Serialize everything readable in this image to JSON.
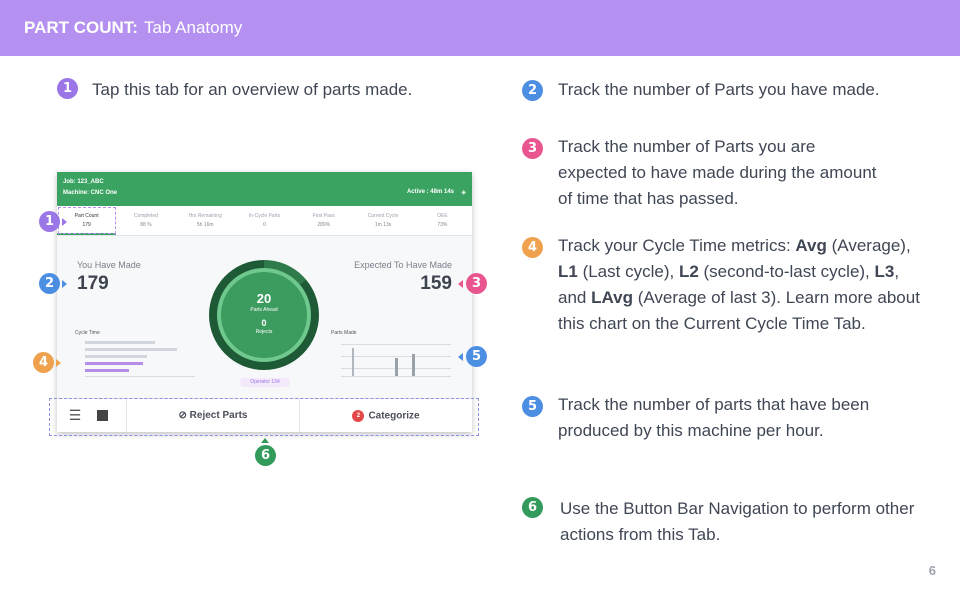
{
  "header": {
    "strong": "PART COUNT:",
    "rest": "Tab Anatomy"
  },
  "notes": [
    {
      "num": "1",
      "text": "Tap this tab for an overview of parts made."
    },
    {
      "num": "2",
      "text": "Track the number of Parts you have made."
    },
    {
      "num": "3",
      "text": "Track the number of Parts you are expected to have made during the amount of time that has passed."
    },
    {
      "num": "4",
      "parts": [
        "Track your Cycle Time metrics: ",
        "Avg",
        " (Average), ",
        "L1",
        " (Last cycle), ",
        "L2",
        " (second-to-last cycle), ",
        "L3",
        ", and ",
        "LAvg",
        " (Average of last 3). Learn more about this chart on the Current Cycle Time Tab."
      ]
    },
    {
      "num": "5",
      "text": "Track the number of parts that have been produced by this machine per hour."
    },
    {
      "num": "6",
      "text": "Use the Button Bar Navigation to perform other actions from this Tab."
    }
  ],
  "screen": {
    "job": "Job: 123_ABC",
    "machine": "Machine: CNC One",
    "active": "Active : 48m 14s",
    "tabs": [
      {
        "label": "Part Count",
        "value": "179"
      },
      {
        "label": "Completed",
        "value": "88 %"
      },
      {
        "label": "Hrs Remaining",
        "value": "5h 16m"
      },
      {
        "label": "In-Cycle Parts",
        "value": "0"
      },
      {
        "label": "First Pass",
        "value": "289%"
      },
      {
        "label": "Current Cycle",
        "value": "1m 13s"
      },
      {
        "label": "OEE",
        "value": "73%"
      }
    ],
    "you_label": "You Have Made",
    "you_value": "179",
    "expected_label": "Expected To Have Made",
    "expected_value": "159",
    "donut_main": "20",
    "donut_main_label": "Parts Ahead",
    "donut_second": "0",
    "donut_second_label": "Rejects",
    "cycle_title": "Cycle Time",
    "parts_title": "Parts Made",
    "operator": "Operator 134",
    "reject": "Reject Parts",
    "categorize": "Categorize",
    "categorize_count": "2"
  },
  "page_number": "6",
  "colors": {
    "header": "#b491f0",
    "screen_top": "#3aa361"
  }
}
